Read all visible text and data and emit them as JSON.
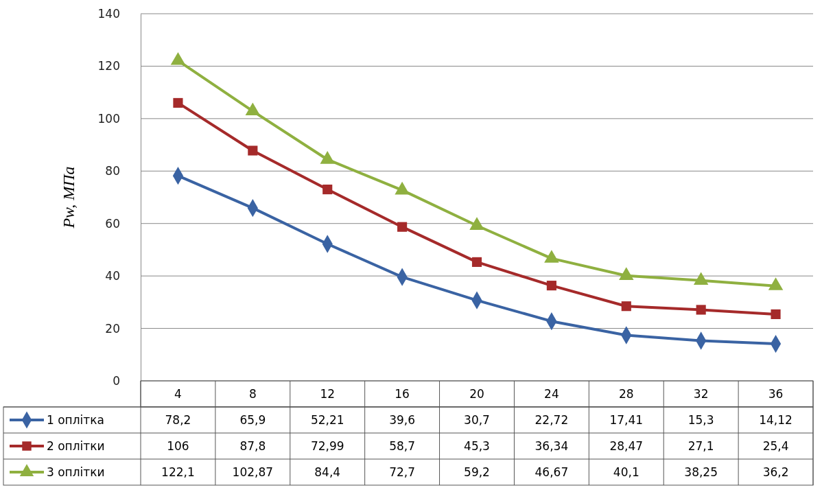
{
  "chart_data": {
    "type": "line",
    "ylabel": "Pw, МПа",
    "categories": [
      "4",
      "8",
      "12",
      "16",
      "20",
      "24",
      "28",
      "32",
      "36"
    ],
    "series": [
      {
        "name": "1 оплітка",
        "color": "#3a63a3",
        "marker": "diamond",
        "values": [
          78.2,
          65.9,
          52.21,
          39.6,
          30.7,
          22.72,
          17.41,
          15.3,
          14.12
        ],
        "value_labels": [
          "78,2",
          "65,9",
          "52,21",
          "39,6",
          "30,7",
          "22,72",
          "17,41",
          "15,3",
          "14,12"
        ]
      },
      {
        "name": "2 оплітки",
        "color": "#a52a2a",
        "marker": "square",
        "values": [
          106,
          87.8,
          72.99,
          58.7,
          45.3,
          36.34,
          28.47,
          27.1,
          25.4
        ],
        "value_labels": [
          "106",
          "87,8",
          "72,99",
          "58,7",
          "45,3",
          "36,34",
          "28,47",
          "27,1",
          "25,4"
        ]
      },
      {
        "name": "3 оплітки",
        "color": "#8fb040",
        "marker": "triangle",
        "values": [
          122.1,
          102.87,
          84.4,
          72.7,
          59.2,
          46.67,
          40.1,
          38.25,
          36.2
        ],
        "value_labels": [
          "122,1",
          "102,87",
          "84,4",
          "72,7",
          "59,2",
          "46,67",
          "40,1",
          "38,25",
          "36,2"
        ]
      }
    ],
    "ylim": [
      0,
      140
    ],
    "yticks": [
      0,
      20,
      40,
      60,
      80,
      100,
      120,
      140
    ],
    "grid": "y",
    "legend": "bottom",
    "line_style": "solid"
  }
}
